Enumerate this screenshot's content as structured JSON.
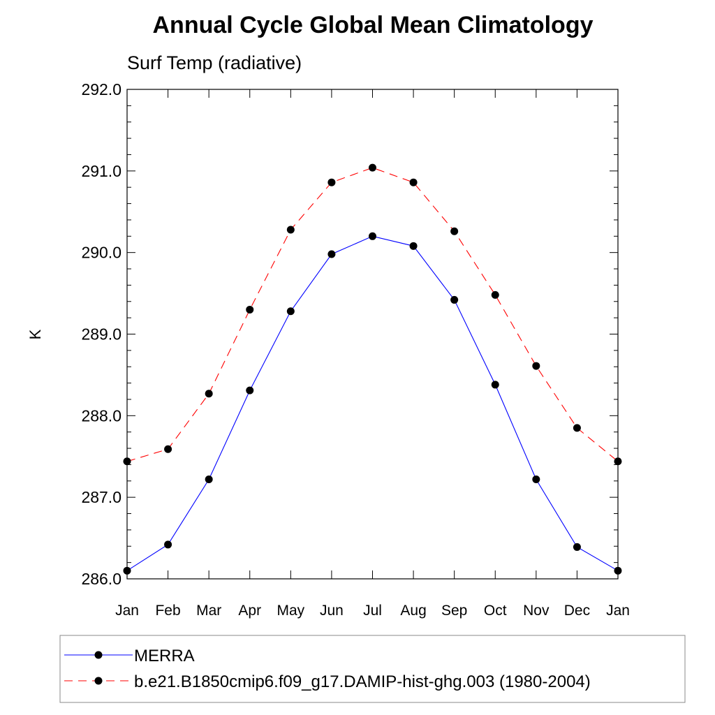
{
  "chart_data": {
    "type": "line",
    "title": "Annual Cycle Global Mean Climatology",
    "subtitle": "Surf Temp (radiative)",
    "xlabel": "",
    "ylabel": "K",
    "categories": [
      "Jan",
      "Feb",
      "Mar",
      "Apr",
      "May",
      "Jun",
      "Jul",
      "Aug",
      "Sep",
      "Oct",
      "Nov",
      "Dec",
      "Jan"
    ],
    "ylim": [
      286.0,
      292.0
    ],
    "yticks": [
      "286.0",
      "287.0",
      "288.0",
      "289.0",
      "290.0",
      "291.0",
      "292.0"
    ],
    "grid": false,
    "legend_position": "bottom",
    "series": [
      {
        "name": "MERRA",
        "color": "#0000ff",
        "dash": "solid",
        "marker": "filled-circle",
        "values": [
          286.1,
          286.42,
          287.22,
          288.31,
          289.28,
          289.98,
          290.2,
          290.08,
          289.42,
          288.38,
          287.22,
          286.39,
          286.1
        ]
      },
      {
        "name": "b.e21.B1850cmip6.f09_g17.DAMIP-hist-ghg.003 (1980-2004)",
        "color": "#ff0000",
        "dash": "dashed",
        "marker": "filled-circle",
        "values": [
          287.44,
          287.59,
          288.27,
          289.3,
          290.28,
          290.86,
          291.04,
          290.86,
          290.26,
          289.48,
          288.61,
          287.85,
          287.44
        ]
      }
    ]
  }
}
